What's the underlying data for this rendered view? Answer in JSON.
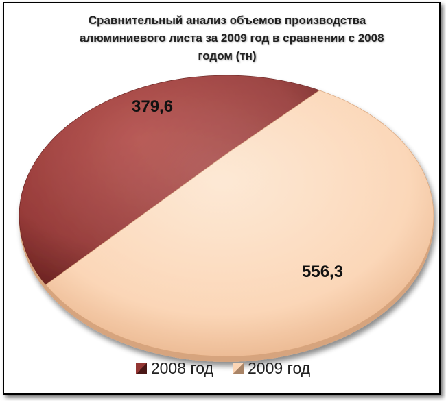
{
  "chart_data": {
    "type": "pie",
    "title_lines": [
      "Сравнительный анализ объемов производства",
      "алюминиевого листа за 2009 год в сравнении с 2008",
      "годом (тн)"
    ],
    "categories": [
      "2008 год",
      "2009 год"
    ],
    "values": [
      379.6,
      556.3
    ],
    "data_labels": [
      "379,6",
      "556,3"
    ],
    "colors": [
      "#943634",
      "#fbd5b5"
    ],
    "legend_position": "bottom"
  }
}
